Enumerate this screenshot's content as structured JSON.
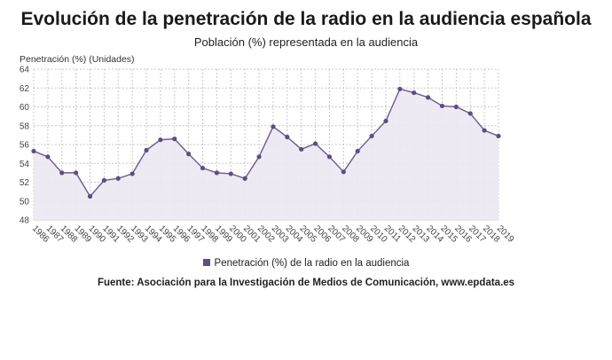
{
  "chart_data": {
    "type": "line",
    "title": "Evolución de la penetración de la radio en la audiencia española",
    "subtitle": "Población (%) representada en la audiencia",
    "ylabel": "Penetración (%) (Unidades)",
    "xlabel": "",
    "x": [
      "1986",
      "1987",
      "1988",
      "1989",
      "1990",
      "1991",
      "1992",
      "1993",
      "1994",
      "1995",
      "1996",
      "1997",
      "1998",
      "1999",
      "2000",
      "2001",
      "2002",
      "2003",
      "2004",
      "2005",
      "2006",
      "2007",
      "2008",
      "2009",
      "2010",
      "2011",
      "2012",
      "2013",
      "2014",
      "2015",
      "2016",
      "2017",
      "2018",
      "2019"
    ],
    "series": [
      {
        "name": "Penetración (%) de la radio en la audiencia",
        "values": [
          55.3,
          54.7,
          53.0,
          53.0,
          50.5,
          52.2,
          52.4,
          52.9,
          55.4,
          56.5,
          56.6,
          55.0,
          53.5,
          53.0,
          52.9,
          52.4,
          54.7,
          57.9,
          56.8,
          55.5,
          56.1,
          54.7,
          53.1,
          55.3,
          56.9,
          58.5,
          61.9,
          61.5,
          61.0,
          60.1,
          60.0,
          59.3,
          57.5,
          56.9
        ]
      }
    ],
    "ylim": [
      48,
      64
    ],
    "yticks": [
      48,
      50,
      52,
      54,
      56,
      58,
      60,
      62,
      64
    ],
    "grid": true,
    "legend_position": "bottom",
    "colors": {
      "line": "#6b5a8e",
      "marker": "#5e4d82",
      "fill": "#ece8f3",
      "grid": "#c8c8c8"
    },
    "legend_label": "Penetración (%) de la radio en la audiencia",
    "source": "Fuente: Asociación para la Investigación de Medios de Comunicación, www.epdata.es"
  }
}
